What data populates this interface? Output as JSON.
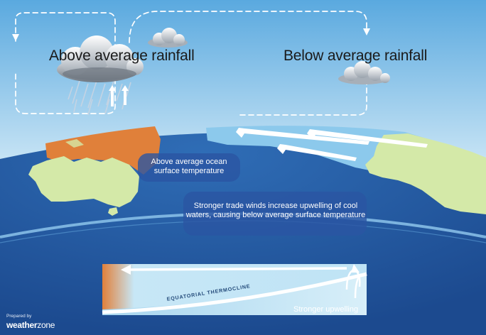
{
  "labels": {
    "rain_above": "Above average rainfall",
    "rain_below": "Below average rainfall",
    "ocean_temp": "Above average ocean surface temperature",
    "trade_winds": "Stronger trade winds increase upwelling of cool waters, causing below average surface temperature",
    "thermocline": "EQUATORIAL THERMOCLINE",
    "upwelling": "Stronger upwelling"
  },
  "credit": {
    "prepared_by": "Prepared by",
    "brand_main": "weather",
    "brand_suffix": "zone"
  },
  "colors": {
    "sky_top": "#5eaee2",
    "sky_bottom": "#cfe8f7",
    "ocean_deep": "#1f4e93",
    "ocean_mid": "#2e69b3",
    "cool_water": "#8cc9ec",
    "land": "#d4e9a8",
    "warm_water": "#e0803a",
    "arrow": "#ffffff"
  },
  "icons": [
    "cloud-icon",
    "rain-icon",
    "arrow-icon"
  ]
}
